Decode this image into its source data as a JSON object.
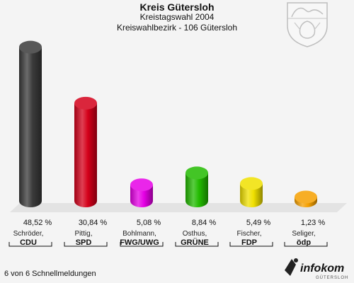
{
  "header": {
    "title": "Kreis Gütersloh",
    "subtitle1": "Kreistagswahl 2004",
    "subtitle2": "Kreiswahlbezirk - 106 Gütersloh"
  },
  "footer": {
    "note": "6 von 6 Schnellmeldungen",
    "brand_name": "infokom",
    "brand_sub": "GÜTERSLOH"
  },
  "chart_data": {
    "type": "bar",
    "title": "Kreis Gütersloh",
    "subtitle": "Kreistagswahl 2004 — Kreiswahlbezirk - 106 Gütersloh",
    "categories": [
      "CDU",
      "SPD",
      "FWG/UWG",
      "GRÜNE",
      "FDP",
      "ödp"
    ],
    "candidates": [
      "Schröder,",
      "Pittig,",
      "Bohlmann,",
      "Osthus,",
      "Fischer,",
      "Seliger,"
    ],
    "values": [
      48.52,
      30.84,
      5.08,
      8.84,
      5.49,
      1.23
    ],
    "value_labels": [
      "48,52 %",
      "30,84 %",
      "5,08 %",
      "8,84 %",
      "5,49 %",
      "1,23 %"
    ],
    "colors": [
      "#3a3a3a",
      "#d4001a",
      "#e600e6",
      "#22bb00",
      "#f0e000",
      "#f5a000"
    ],
    "ylim": [
      0,
      50
    ],
    "grid": false,
    "legend": "none"
  }
}
